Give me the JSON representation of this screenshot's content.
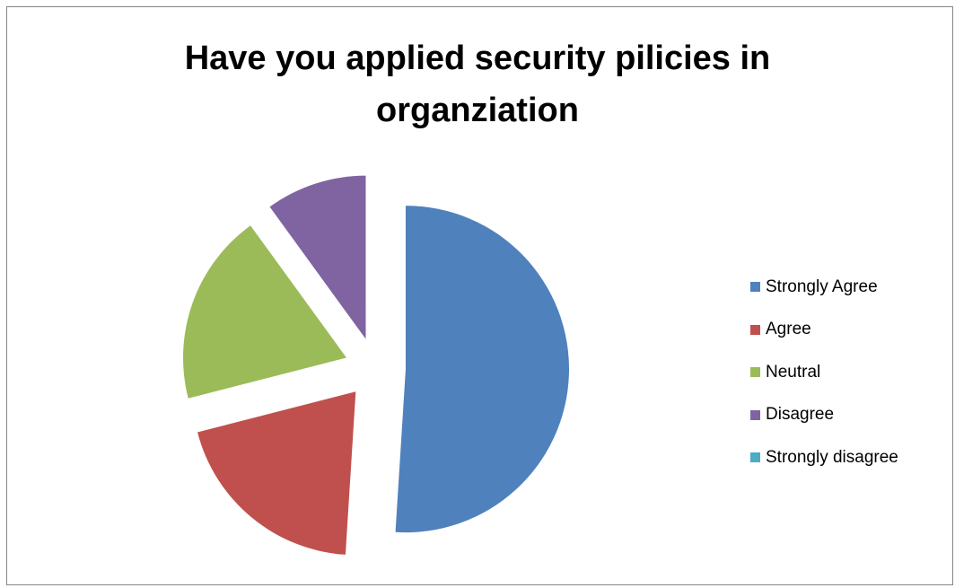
{
  "chart_data": {
    "type": "pie",
    "title": "Have you applied security pilicies in organziation",
    "title_lines": [
      "Have you applied security pilicies in",
      "organziation"
    ],
    "categories": [
      "Strongly Agree",
      "Agree",
      "Neutral",
      "Disagree",
      "Strongly disagree"
    ],
    "values": [
      51,
      20,
      19,
      10,
      0
    ],
    "unit": "%",
    "exploded": true,
    "start_angle_deg": 0,
    "direction": "clockwise",
    "colors": [
      "#4F81BD",
      "#C0504D",
      "#9BBB59",
      "#8064A2",
      "#4BACC6"
    ],
    "legend_position": "right",
    "data_labels": false
  }
}
